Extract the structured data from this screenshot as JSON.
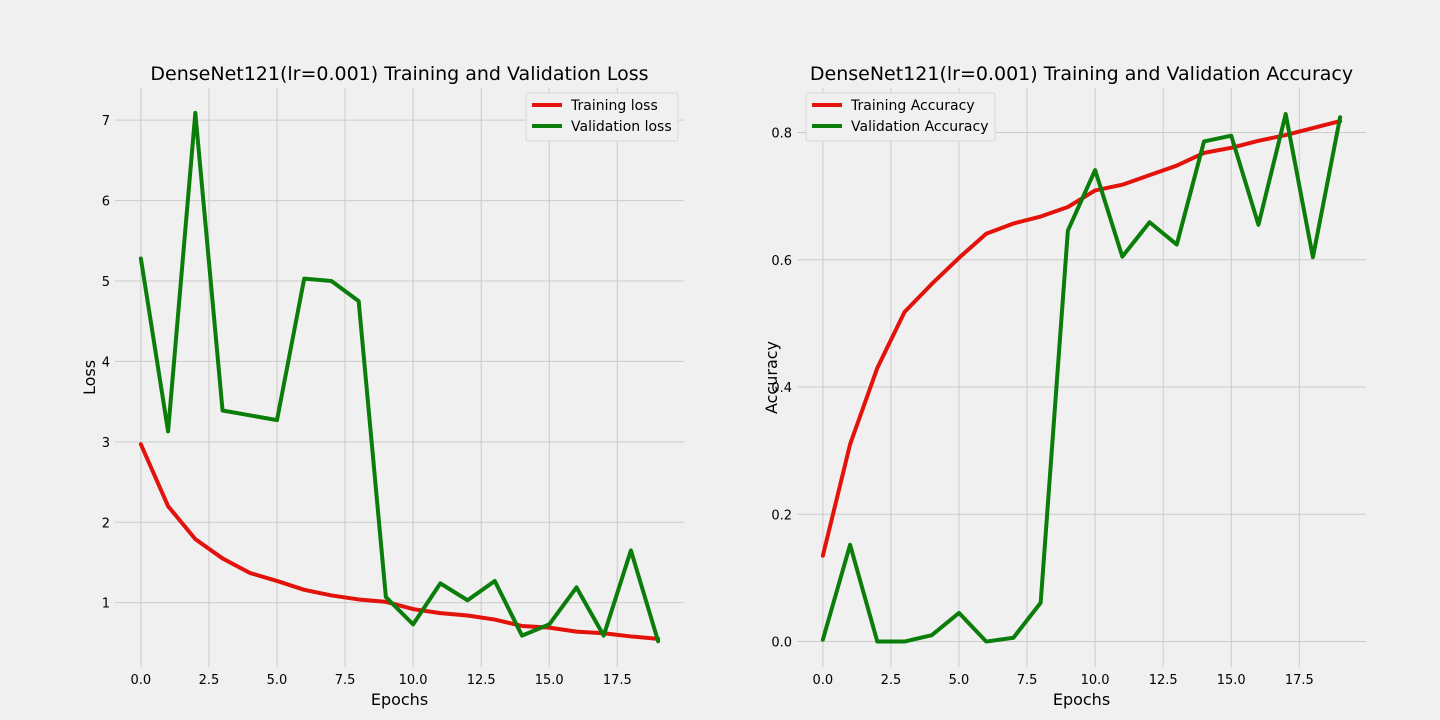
{
  "chart_data": [
    {
      "type": "line",
      "title": "DenseNet121(lr=0.001) Training and Validation Loss",
      "xlabel": "Epochs",
      "ylabel": "Loss",
      "xlim": [
        -0.95,
        19.95
      ],
      "ylim": [
        0.2,
        7.4
      ],
      "xticks": [
        0,
        2.5,
        5,
        7.5,
        10,
        12.5,
        15,
        17.5
      ],
      "xtick_labels": [
        "0.0",
        "2.5",
        "5.0",
        "7.5",
        "10.0",
        "12.5",
        "15.0",
        "17.5"
      ],
      "yticks": [
        1,
        2,
        3,
        4,
        5,
        6,
        7
      ],
      "ytick_labels": [
        "1",
        "2",
        "3",
        "4",
        "5",
        "6",
        "7"
      ],
      "grid": true,
      "legend_placement": "top-right",
      "x": [
        0,
        1,
        2,
        3,
        4,
        5,
        6,
        7,
        8,
        9,
        10,
        11,
        12,
        13,
        14,
        15,
        16,
        17,
        18,
        19
      ],
      "series": [
        {
          "name": "Training loss",
          "color": "#e3120b",
          "values": [
            2.97,
            2.2,
            1.79,
            1.55,
            1.37,
            1.27,
            1.16,
            1.09,
            1.04,
            1.01,
            0.92,
            0.87,
            0.84,
            0.79,
            0.71,
            0.69,
            0.64,
            0.62,
            0.58,
            0.55
          ]
        },
        {
          "name": "Validation loss",
          "color": "#0a7d0a",
          "values": [
            5.28,
            3.13,
            7.09,
            3.39,
            3.33,
            3.27,
            5.03,
            5.0,
            4.75,
            1.07,
            0.73,
            1.24,
            1.03,
            1.27,
            0.59,
            0.73,
            1.19,
            0.59,
            1.65,
            0.52
          ]
        }
      ]
    },
    {
      "type": "line",
      "title": "DenseNet121(lr=0.001) Training and Validation Accuracy",
      "xlabel": "Epochs",
      "ylabel": "Accuracy",
      "xlim": [
        -0.95,
        19.95
      ],
      "ylim": [
        -0.04,
        0.87
      ],
      "xticks": [
        0,
        2.5,
        5,
        7.5,
        10,
        12.5,
        15,
        17.5
      ],
      "xtick_labels": [
        "0.0",
        "2.5",
        "5.0",
        "7.5",
        "10.0",
        "12.5",
        "15.0",
        "17.5"
      ],
      "yticks": [
        0,
        0.2,
        0.4,
        0.6,
        0.8
      ],
      "ytick_labels": [
        "0.0",
        "0.2",
        "0.4",
        "0.6",
        "0.8"
      ],
      "grid": true,
      "legend_placement": "top-left",
      "x": [
        0,
        1,
        2,
        3,
        4,
        5,
        6,
        7,
        8,
        9,
        10,
        11,
        12,
        13,
        14,
        15,
        16,
        17,
        18,
        19
      ],
      "series": [
        {
          "name": "Training Accuracy",
          "color": "#e3120b",
          "values": [
            0.135,
            0.31,
            0.43,
            0.518,
            0.562,
            0.603,
            0.641,
            0.657,
            0.668,
            0.683,
            0.709,
            0.718,
            0.733,
            0.748,
            0.768,
            0.776,
            0.787,
            0.796,
            0.807,
            0.818
          ]
        },
        {
          "name": "Validation Accuracy",
          "color": "#0a7d0a",
          "values": [
            0.003,
            0.152,
            0.0,
            0.0,
            0.01,
            0.045,
            0.0,
            0.006,
            0.061,
            0.646,
            0.741,
            0.605,
            0.659,
            0.624,
            0.786,
            0.795,
            0.655,
            0.829,
            0.604,
            0.824
          ]
        }
      ]
    }
  ]
}
